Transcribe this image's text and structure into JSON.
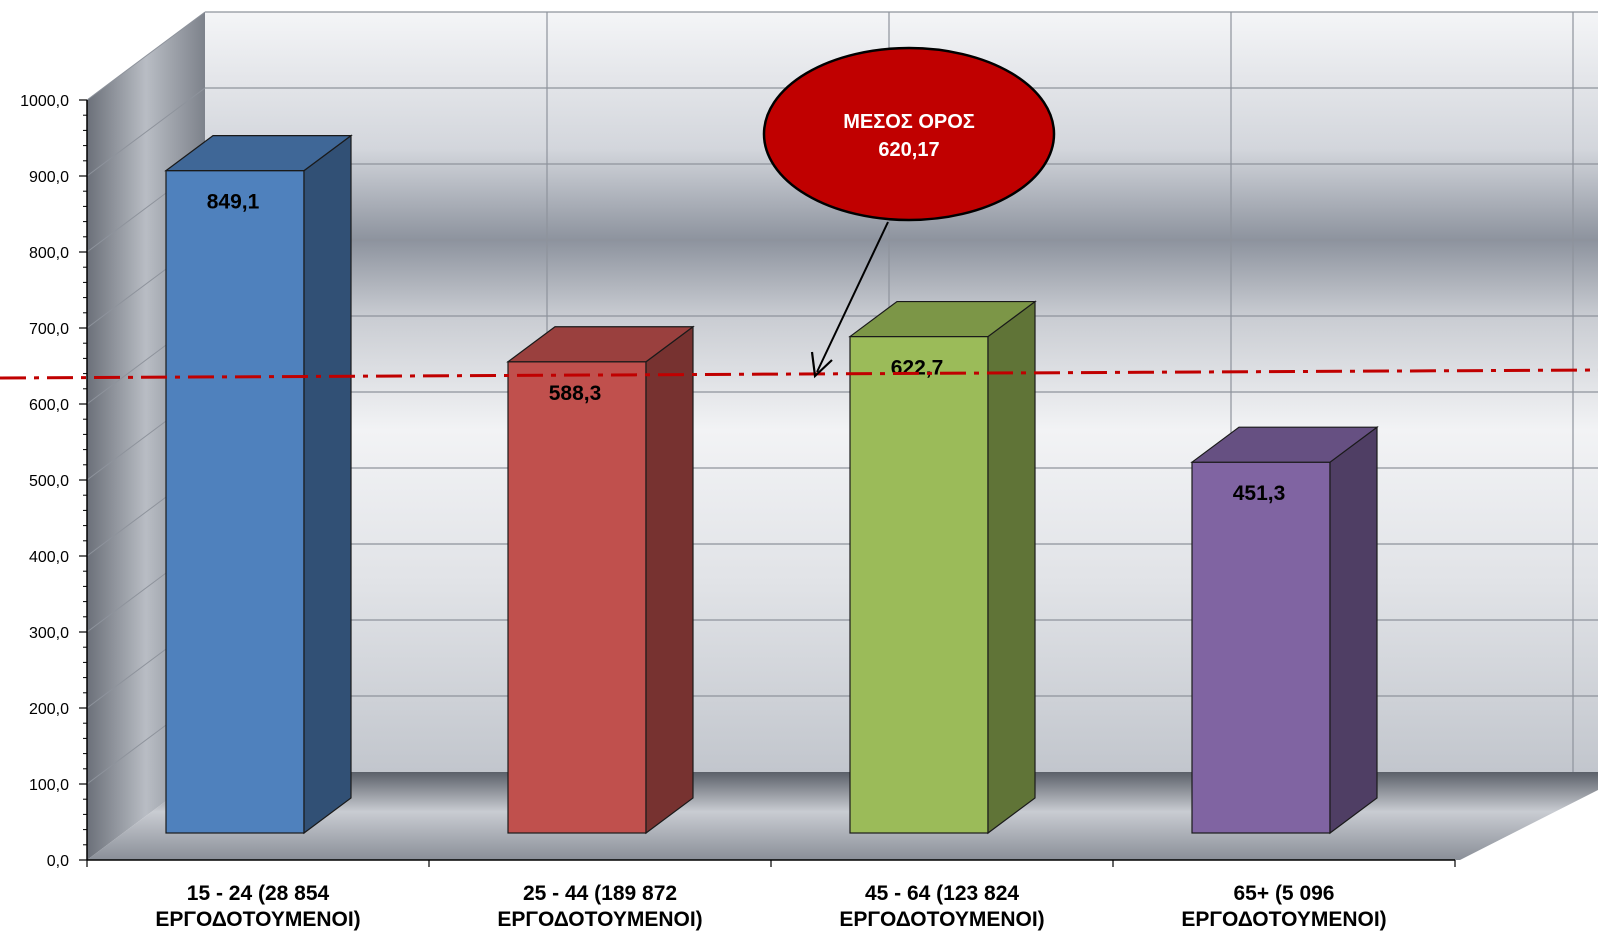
{
  "chart_data": {
    "type": "bar",
    "title": "",
    "xlabel": "",
    "ylabel": "",
    "ylim": [
      0,
      1000
    ],
    "yticks": [
      0,
      100,
      200,
      300,
      400,
      500,
      600,
      700,
      800,
      900,
      1000
    ],
    "yticklabels": [
      "0,0",
      "100,0",
      "200,0",
      "300,0",
      "400,0",
      "500,0",
      "600,0",
      "700,0",
      "800,0",
      "900,0",
      "1000,0"
    ],
    "categories": [
      [
        "15 - 24 (28 854",
        "ΕΡΓΟΔΟΤΟΥΜΕΝΟΙ)"
      ],
      [
        "25 - 44 (189 872",
        "ΕΡΓΟΔΟΤΟΥΜΕΝΟΙ)"
      ],
      [
        "45 - 64 (123 824",
        "ΕΡΓΟΔΟΤΟΥΜΕΝΟΙ)"
      ],
      [
        "65+ (5 096",
        "ΕΡΓΟΔΟΤΟΥΜΕΝΟΙ)"
      ]
    ],
    "values": [
      849.1,
      588.3,
      622.7,
      451.3
    ],
    "value_labels": [
      "849,1",
      "588,3",
      "622,7",
      "451,3"
    ],
    "colors": [
      "#4f81bd",
      "#c0504d",
      "#9bbb59",
      "#8064a2"
    ],
    "grid": true,
    "legend": "none",
    "reference_line": {
      "value": 620.17,
      "color": "#c00000",
      "style": "dash-dot"
    },
    "annotation": {
      "lines": [
        "ΜΕΣΟΣ ΟΡΟΣ",
        "620,17"
      ],
      "color": "#c00000"
    }
  }
}
